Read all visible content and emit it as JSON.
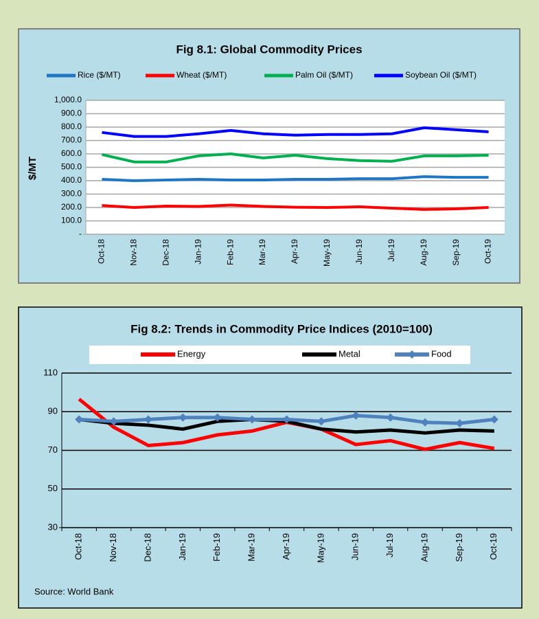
{
  "chart_data": [
    {
      "type": "line",
      "title": "Fig 8.1: Global Commodity Prices",
      "y_label": "$/MT",
      "categories": [
        "Oct-18",
        "Nov-18",
        "Dec-18",
        "Jan-19",
        "Feb-19",
        "Mar-19",
        "Apr-19",
        "May-19",
        "Jun-19",
        "Jul-19",
        "Aug-19",
        "Sep-19",
        "Oct-19"
      ],
      "series": [
        {
          "name": "Rice ($/MT)",
          "color": "#1f77c4",
          "values": [
            410,
            400,
            405,
            410,
            405,
            405,
            410,
            410,
            415,
            415,
            430,
            425,
            425
          ]
        },
        {
          "name": "Wheat ($/MT)",
          "color": "#ff0000",
          "values": [
            215,
            200,
            210,
            208,
            218,
            208,
            202,
            200,
            205,
            195,
            185,
            190,
            200
          ]
        },
        {
          "name": "Palm Oil ($/MT)",
          "color": "#00b050",
          "values": [
            595,
            540,
            540,
            585,
            600,
            570,
            590,
            565,
            550,
            545,
            585,
            585,
            590
          ]
        },
        {
          "name": "Soybean Oil ($/MT)",
          "color": "#0000ff",
          "values": [
            760,
            730,
            730,
            750,
            775,
            750,
            740,
            745,
            745,
            750,
            795,
            780,
            765
          ]
        }
      ],
      "ylim": [
        0,
        1000
      ],
      "yticks": [
        {
          "value": 0,
          "label": "-"
        },
        {
          "value": 100,
          "label": "100.0"
        },
        {
          "value": 200,
          "label": "200.0"
        },
        {
          "value": 300,
          "label": "300.0"
        },
        {
          "value": 400,
          "label": "400.0"
        },
        {
          "value": 500,
          "label": "500.0"
        },
        {
          "value": 600,
          "label": "600.0"
        },
        {
          "value": 700,
          "label": "700.0"
        },
        {
          "value": 800,
          "label": "800.0"
        },
        {
          "value": 900,
          "label": "900.0"
        },
        {
          "value": 1000,
          "label": "1,000.0"
        }
      ],
      "grid": true,
      "legend": "top"
    },
    {
      "type": "line",
      "title": "Fig 8.2: Trends in Commodity Price Indices (2010=100)",
      "source": "Source: World Bank",
      "categories": [
        "Oct-18",
        "Nov-18",
        "Dec-18",
        "Jan-19",
        "Feb-19",
        "Mar-19",
        "Apr-19",
        "May-19",
        "Jun-19",
        "Jul-19",
        "Aug-19",
        "Sep-19",
        "Oct-19"
      ],
      "series": [
        {
          "name": "Energy",
          "color": "#ff0000",
          "values": [
            96.5,
            82,
            72.5,
            74,
            78,
            80,
            84.5,
            81,
            73,
            75,
            70.5,
            74,
            71
          ]
        },
        {
          "name": "Metal",
          "color": "#000000",
          "values": [
            86,
            84,
            83,
            81,
            85,
            86,
            85,
            81,
            79.5,
            80.5,
            79,
            80.5,
            80
          ]
        },
        {
          "name": "Food",
          "color": "#4f81bd",
          "marker": "diamond",
          "values": [
            86,
            85,
            86,
            87,
            87,
            86,
            86,
            85,
            88,
            87,
            84.5,
            84,
            86
          ]
        }
      ],
      "ylim": [
        30,
        110
      ],
      "yticks": [
        30,
        50,
        70,
        90,
        110
      ],
      "grid": true,
      "legend": "top"
    }
  ]
}
